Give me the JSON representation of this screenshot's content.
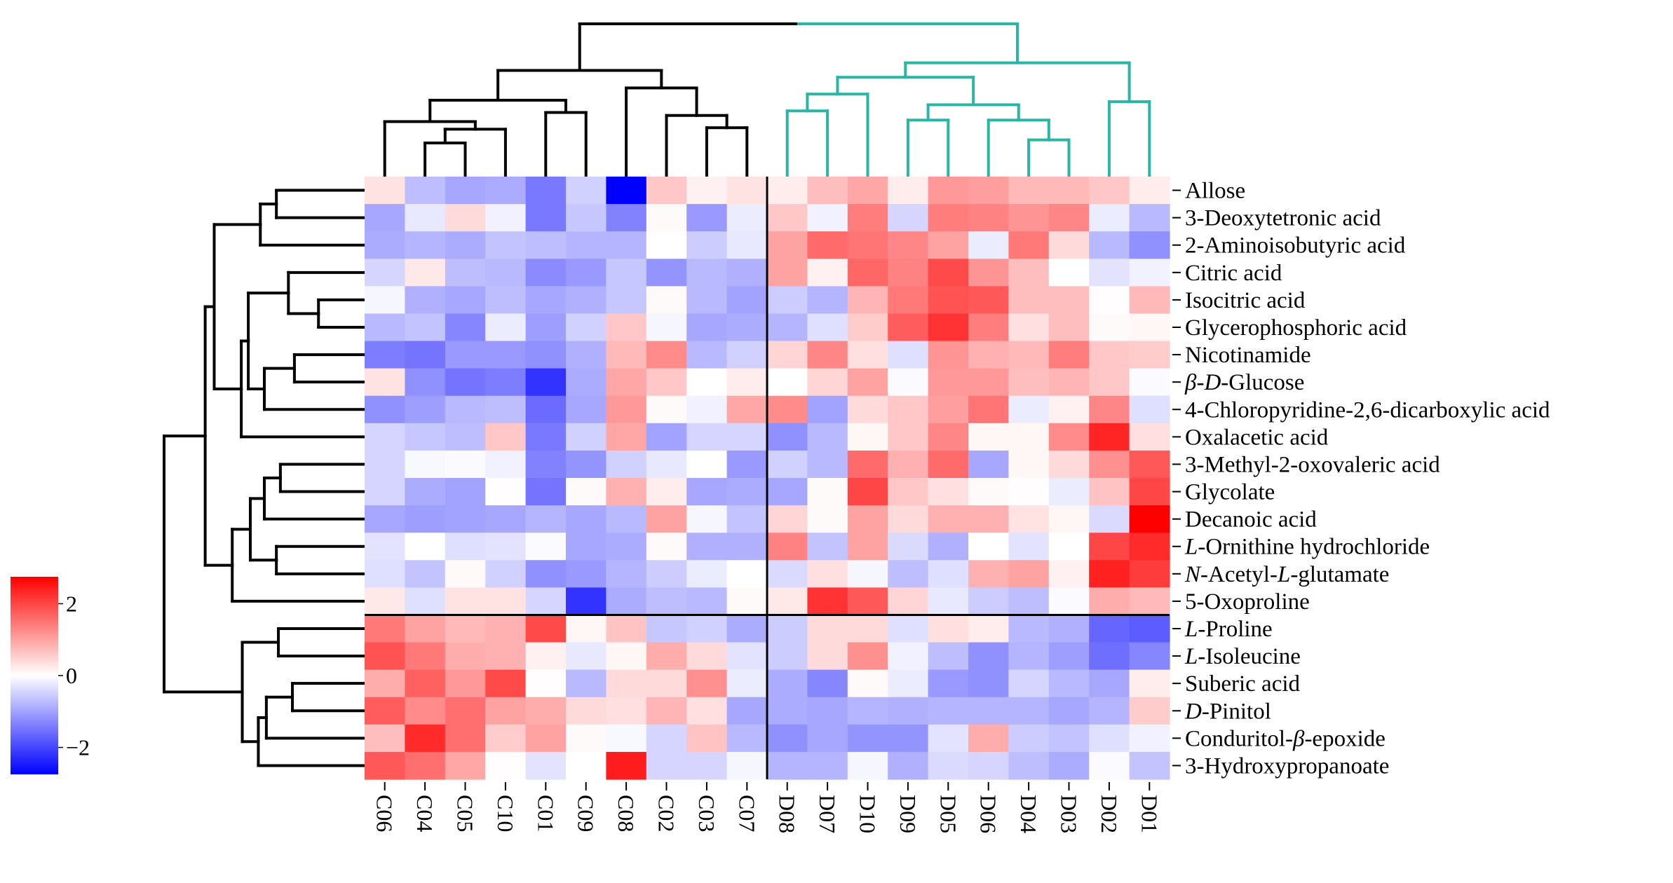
{
  "chart_data": {
    "type": "heatmap",
    "title": "",
    "columns": [
      "C06",
      "C04",
      "C05",
      "C10",
      "C01",
      "C09",
      "C08",
      "C02",
      "C03",
      "C07",
      "D08",
      "D07",
      "D10",
      "D09",
      "D05",
      "D06",
      "D04",
      "D03",
      "D02",
      "D01"
    ],
    "rows": [
      [
        [
          "Allose",
          false
        ]
      ],
      [
        [
          "3-Deoxytetronic acid",
          false
        ]
      ],
      [
        [
          "2-Aminoisobutyric acid",
          false
        ]
      ],
      [
        [
          "Citric acid",
          false
        ]
      ],
      [
        [
          "Isocitric acid",
          false
        ]
      ],
      [
        [
          "Glycerophosphoric acid",
          false
        ]
      ],
      [
        [
          "Nicotinamide",
          false
        ]
      ],
      [
        [
          "β",
          true
        ],
        [
          "-",
          false
        ],
        [
          "D",
          true
        ],
        [
          "-Glucose",
          false
        ]
      ],
      [
        [
          "4-Chloropyridine-2,6-dicarboxylic acid",
          false
        ]
      ],
      [
        [
          "Oxalacetic acid",
          false
        ]
      ],
      [
        [
          "3-Methyl-2-oxovaleric acid",
          false
        ]
      ],
      [
        [
          "Glycolate",
          false
        ]
      ],
      [
        [
          "Decanoic acid",
          false
        ]
      ],
      [
        [
          "L",
          true
        ],
        [
          "-Ornithine hydrochloride",
          false
        ]
      ],
      [
        [
          "N",
          true
        ],
        [
          "-Acetyl-",
          false
        ],
        [
          "L",
          true
        ],
        [
          "-glutamate",
          false
        ]
      ],
      [
        [
          "5-Oxoproline",
          false
        ]
      ],
      [
        [
          "L",
          true
        ],
        [
          "-Proline",
          false
        ]
      ],
      [
        [
          "L",
          true
        ],
        [
          "-Isoleucine",
          false
        ]
      ],
      [
        [
          "Suberic acid",
          false
        ]
      ],
      [
        [
          "D",
          true
        ],
        [
          "-Pinitol",
          false
        ]
      ],
      [
        [
          "Conduritol-",
          false
        ],
        [
          "β",
          true
        ],
        [
          "-epoxide",
          false
        ]
      ],
      [
        [
          "3-Hydroxypropanoate",
          false
        ]
      ]
    ],
    "values": [
      [
        0.3,
        -0.7,
        -0.95,
        -0.9,
        -1.45,
        -0.5,
        -2.75,
        0.6,
        0.15,
        0.3,
        0.2,
        0.7,
        0.95,
        0.2,
        1.1,
        1.05,
        0.75,
        0.75,
        0.6,
        0.2
      ],
      [
        -0.95,
        -0.25,
        0.4,
        -0.15,
        -1.45,
        -0.6,
        -1.35,
        0.05,
        -1.1,
        -0.2,
        0.6,
        -0.15,
        1.4,
        -0.45,
        1.4,
        1.35,
        1.15,
        1.3,
        -0.2,
        -0.75
      ],
      [
        -0.9,
        -0.8,
        -0.9,
        -0.65,
        -0.7,
        -0.8,
        -0.8,
        0,
        -0.55,
        -0.25,
        1.0,
        1.6,
        1.5,
        1.3,
        1.0,
        -0.2,
        1.45,
        0.4,
        -0.75,
        -1.2
      ],
      [
        -0.45,
        0.25,
        -0.7,
        -0.75,
        -1.25,
        -1.1,
        -0.6,
        -1.15,
        -0.75,
        -0.85,
        1.0,
        0.15,
        1.65,
        1.35,
        1.95,
        1.15,
        0.7,
        0,
        -0.3,
        -0.15
      ],
      [
        -0.1,
        -0.85,
        -0.95,
        -0.7,
        -0.95,
        -0.85,
        -0.6,
        0.05,
        -0.75,
        -1.0,
        -0.55,
        -0.8,
        0.8,
        1.45,
        1.85,
        1.8,
        0.7,
        0.7,
        0.02,
        0.75
      ],
      [
        -0.75,
        -0.65,
        -1.3,
        -0.2,
        -1.05,
        -0.5,
        0.6,
        -0.1,
        -0.95,
        -0.9,
        -0.8,
        -0.35,
        0.55,
        1.75,
        2.2,
        1.4,
        0.35,
        0.7,
        0.05,
        0.1
      ],
      [
        -1.4,
        -1.5,
        -1.1,
        -1.1,
        -1.2,
        -0.85,
        0.75,
        1.25,
        -0.75,
        -0.5,
        0.45,
        1.3,
        0.35,
        -0.35,
        1.15,
        0.85,
        0.75,
        1.4,
        0.6,
        0.55
      ],
      [
        0.3,
        -1.2,
        -1.5,
        -1.4,
        -2.2,
        -0.9,
        0.95,
        0.6,
        0,
        0.2,
        0,
        0.45,
        1.0,
        -0.05,
        1.1,
        1.1,
        0.7,
        0.8,
        0.6,
        -0.05
      ],
      [
        -1.2,
        -1.05,
        -0.75,
        -0.7,
        -1.6,
        -0.95,
        1.1,
        0.05,
        -0.15,
        0.95,
        1.25,
        -1.0,
        0.4,
        0.6,
        1.05,
        1.5,
        -0.2,
        0.15,
        1.3,
        -0.35
      ],
      [
        -0.45,
        -0.6,
        -0.7,
        0.6,
        -1.45,
        -0.5,
        0.95,
        -1.0,
        -0.45,
        -0.45,
        -1.2,
        -0.75,
        0.1,
        0.6,
        1.3,
        0.1,
        0.1,
        1.25,
        2.35,
        0.35
      ],
      [
        -0.45,
        -0.08,
        -0.05,
        -0.15,
        -1.35,
        -1.15,
        -0.5,
        -0.25,
        0,
        -1.1,
        -0.5,
        -0.75,
        1.6,
        0.85,
        1.6,
        -0.95,
        0.1,
        0.4,
        1.2,
        1.8
      ],
      [
        -0.45,
        -0.9,
        -1.0,
        0.02,
        -1.5,
        0.05,
        0.85,
        0.2,
        -0.95,
        -0.9,
        -0.95,
        0.05,
        2.0,
        0.6,
        0.35,
        0.05,
        0.02,
        -0.2,
        0.65,
        2.0
      ],
      [
        -0.95,
        -1.05,
        -1.0,
        -0.95,
        -0.8,
        -0.95,
        -0.75,
        1.0,
        -0.1,
        -0.65,
        0.45,
        0.05,
        1.0,
        0.4,
        0.85,
        0.85,
        0.3,
        0.1,
        -0.4,
        2.75
      ],
      [
        -0.3,
        0,
        -0.35,
        -0.3,
        -0.05,
        -0.95,
        -0.9,
        0.05,
        -0.85,
        -0.85,
        1.35,
        -0.65,
        1.0,
        -0.4,
        -0.85,
        0,
        -0.3,
        0,
        2.0,
        2.3
      ],
      [
        -0.35,
        -0.65,
        0.05,
        -0.5,
        -1.2,
        -1.1,
        -0.8,
        -0.55,
        -0.2,
        0,
        -0.4,
        0.35,
        -0.1,
        -0.7,
        -0.35,
        0.85,
        1.0,
        0.15,
        2.4,
        2.1
      ],
      [
        0.25,
        -0.35,
        0.3,
        0.3,
        -0.45,
        -2.2,
        -0.9,
        -0.7,
        -0.75,
        0.05,
        0.25,
        2.2,
        1.8,
        0.45,
        -0.25,
        -0.55,
        -0.7,
        -0.05,
        0.9,
        0.75
      ],
      [
        1.45,
        1.0,
        0.75,
        0.85,
        1.95,
        0.1,
        0.65,
        -0.6,
        -0.5,
        -0.9,
        -0.55,
        0.4,
        0.4,
        -0.35,
        0.35,
        0.2,
        -0.75,
        -0.85,
        -1.65,
        -1.75
      ],
      [
        1.85,
        1.45,
        0.9,
        0.85,
        0.15,
        -0.25,
        0.1,
        0.9,
        0.4,
        -0.3,
        -0.55,
        0.4,
        1.2,
        -0.15,
        -0.7,
        -1.2,
        -0.8,
        -1.05,
        -1.55,
        -1.3
      ],
      [
        0.9,
        1.7,
        1.1,
        1.95,
        0.02,
        -0.75,
        0.4,
        0.4,
        1.2,
        -0.2,
        -0.9,
        -1.3,
        0.05,
        -0.2,
        -1.1,
        -1.2,
        -0.45,
        -0.75,
        -0.95,
        0.2
      ],
      [
        1.75,
        1.25,
        1.55,
        1.0,
        0.9,
        0.4,
        0.35,
        0.8,
        0.35,
        -0.95,
        -0.9,
        -0.95,
        -0.8,
        -0.85,
        -0.8,
        -0.8,
        -0.8,
        -0.95,
        -0.8,
        0.55
      ],
      [
        0.7,
        2.3,
        1.55,
        0.55,
        1.0,
        0.05,
        -0.08,
        -0.45,
        0.65,
        -0.75,
        -1.2,
        -0.95,
        -1.15,
        -1.15,
        -0.3,
        0.9,
        -0.55,
        -0.65,
        -0.35,
        -0.15
      ],
      [
        1.8,
        1.55,
        0.95,
        0.02,
        -0.3,
        0,
        2.45,
        -0.45,
        -0.45,
        -0.1,
        -0.8,
        -0.8,
        -0.1,
        -0.85,
        -0.4,
        -0.45,
        -0.7,
        -0.9,
        -0.05,
        -0.65
      ]
    ],
    "color_scale": {
      "colormap": "blue-white-red",
      "min": -2.75,
      "max": 2.75,
      "low_color": "#0000ff",
      "mid_color": "#ffffff",
      "high_color": "#ff0000"
    },
    "colorbar": {
      "ticks": [
        2,
        0,
        -2
      ],
      "tick_labels": [
        "2",
        "0",
        "−2"
      ]
    },
    "column_split_after": "C07",
    "row_split_after": "5-Oxoproline",
    "column_dendrogram": [
      10,
      [
        6.95,
        [
          5.0,
          [
            3.6,
            0,
            [
              3.1,
              [
                2.2,
                1,
                2
              ],
              3
            ]
          ],
          [
            4.2,
            4,
            5
          ]
        ],
        [
          5.8,
          6,
          [
            4.0,
            7,
            [
              3.2,
              8,
              9
            ]
          ]
        ]
      ],
      [
        7.45,
        [
          6.5,
          [
            5.4,
            [
              4.3,
              10,
              11
            ],
            12
          ],
          [
            4.7,
            [
              3.7,
              13,
              14
            ],
            [
              3.7,
              15,
              [
                2.4,
                16,
                17
              ]
            ]
          ]
        ],
        [
          4.9,
          18,
          19
        ]
      ]
    ],
    "row_dendrogram": [
      10,
      [
        7.95,
        [
          7.5,
          [
            5.2,
            [
              4.4,
              0,
              1
            ],
            2
          ],
          [
            6.15,
            [
              5.8,
              [
                3.8,
                3,
                [
                  2.3,
                  4,
                  5
                ]
              ],
              [
                5.0,
                [
                  3.5,
                  6,
                  7
                ],
                8
              ]
            ],
            9
          ]
        ],
        [
          6.6,
          [
            5.7,
            [
              5.0,
              [
                4.2,
                10,
                11
              ],
              12
            ],
            [
              4.4,
              13,
              14
            ]
          ],
          15
        ]
      ],
      [
        6.1,
        [
          4.3,
          16,
          17
        ],
        [
          5.3,
          [
            4.9,
            [
              3.6,
              18,
              19
            ],
            20
          ],
          21
        ]
      ]
    ],
    "dendrogram_colors": {
      "default": "#000000",
      "column_cluster_2": "#2ab5a5"
    },
    "grid": false
  }
}
